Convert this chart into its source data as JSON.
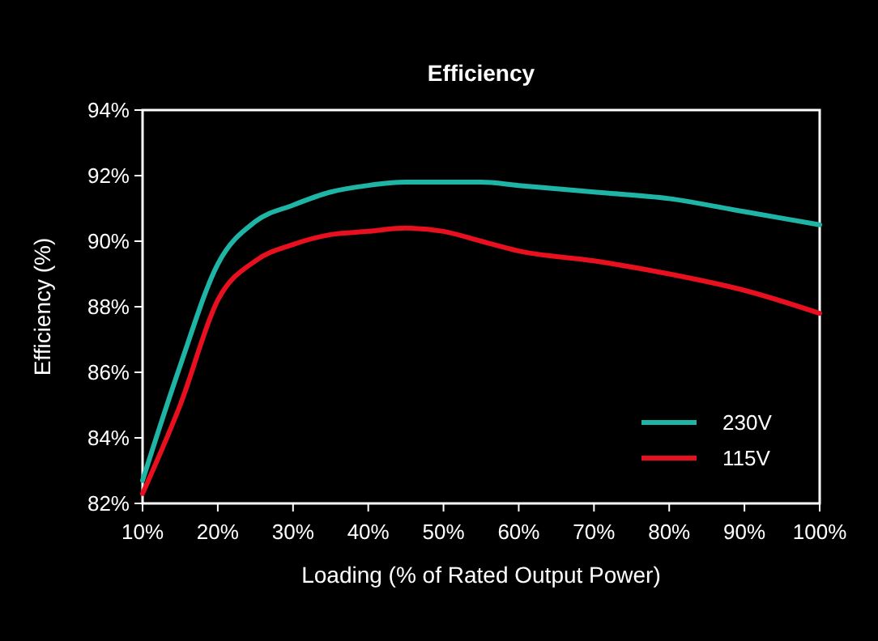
{
  "chart_data": {
    "type": "line",
    "title": "Efficiency",
    "xlabel": "Loading (% of Rated Output Power)",
    "ylabel": "Efficiency (%)",
    "x": [
      10,
      15,
      20,
      25,
      30,
      35,
      40,
      45,
      50,
      55,
      60,
      70,
      80,
      90,
      100
    ],
    "series": [
      {
        "name": "230V",
        "color": "#1fb5a6",
        "values": [
          82.7,
          86.2,
          89.3,
          90.6,
          91.1,
          91.5,
          91.7,
          91.8,
          91.8,
          91.8,
          91.7,
          91.5,
          91.3,
          90.9,
          90.5
        ]
      },
      {
        "name": "115V",
        "color": "#e8101e",
        "values": [
          82.3,
          85.0,
          88.2,
          89.4,
          89.9,
          90.2,
          90.3,
          90.4,
          90.3,
          90.0,
          89.7,
          89.4,
          89.0,
          88.5,
          87.8
        ]
      }
    ],
    "xlim": [
      10,
      100
    ],
    "xticks": [
      {
        "value": 10,
        "label": "10%"
      },
      {
        "value": 20,
        "label": "20%"
      },
      {
        "value": 30,
        "label": "30%"
      },
      {
        "value": 40,
        "label": "40%"
      },
      {
        "value": 50,
        "label": "50%"
      },
      {
        "value": 60,
        "label": "60%"
      },
      {
        "value": 70,
        "label": "70%"
      },
      {
        "value": 80,
        "label": "80%"
      },
      {
        "value": 90,
        "label": "90%"
      },
      {
        "value": 100,
        "label": "100%"
      }
    ],
    "ylim": [
      82,
      94
    ],
    "yticks": [
      {
        "value": 82,
        "label": "82%"
      },
      {
        "value": 84,
        "label": "84%"
      },
      {
        "value": 86,
        "label": "86%"
      },
      {
        "value": 88,
        "label": "88%"
      },
      {
        "value": 90,
        "label": "90%"
      },
      {
        "value": 92,
        "label": "92%"
      },
      {
        "value": 94,
        "label": "94%"
      }
    ],
    "grid": false,
    "legend": "bottom right",
    "marker": "none",
    "line_style": "solid"
  }
}
